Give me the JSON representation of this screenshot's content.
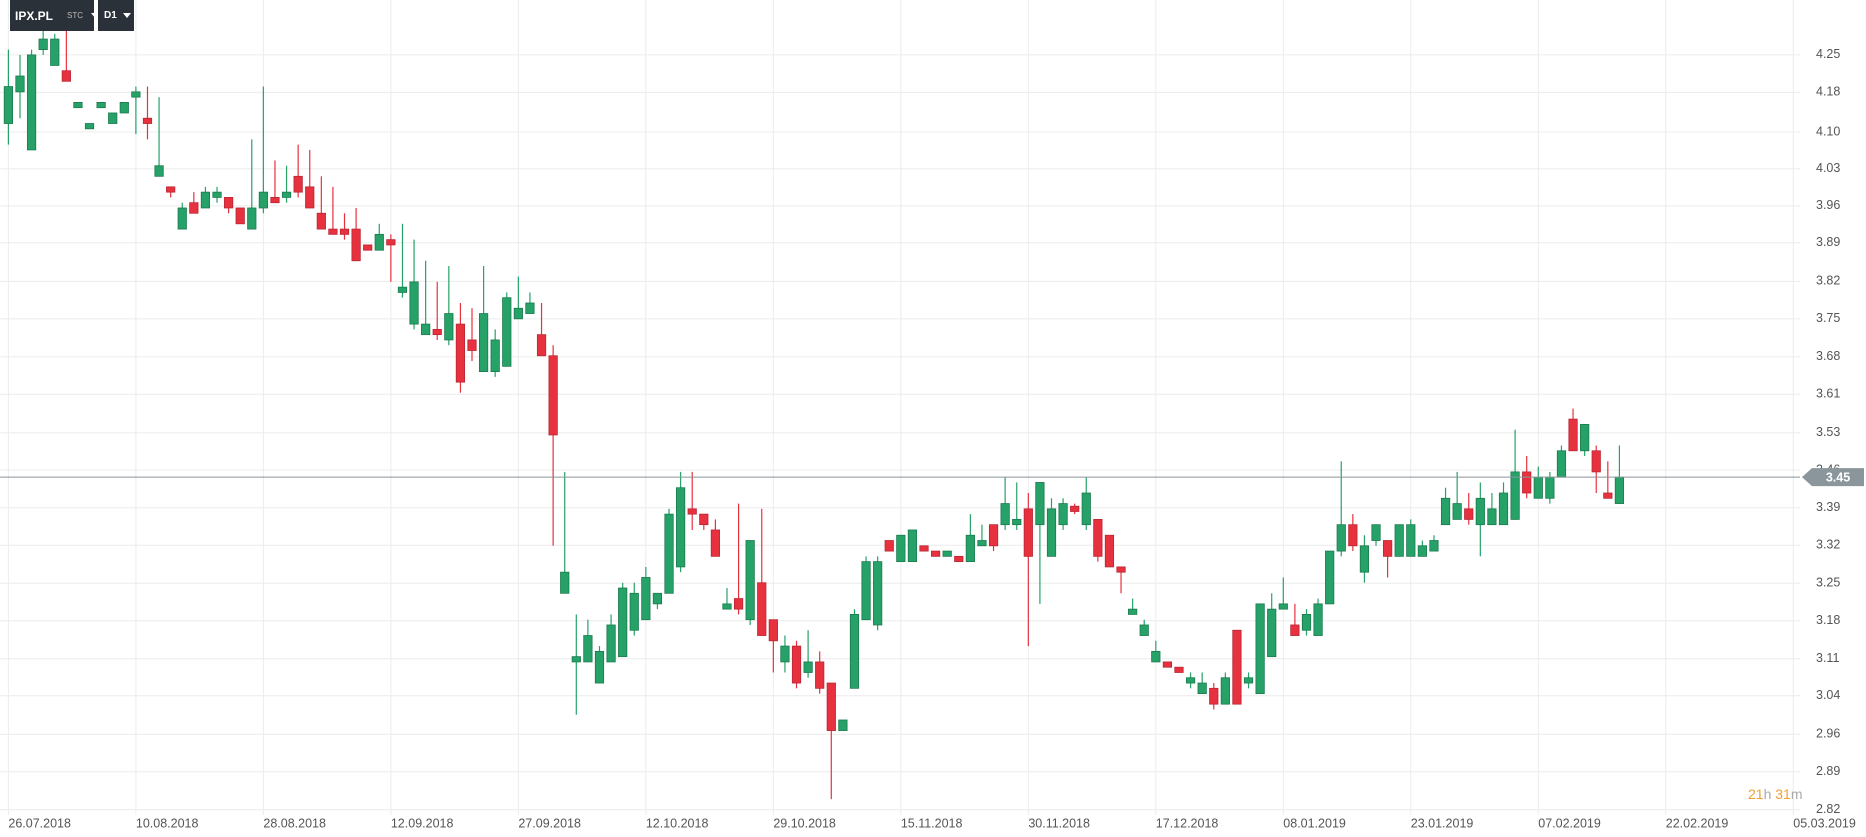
{
  "header": {
    "symbol": "IPX.PL",
    "market": "STC",
    "interval": "D1"
  },
  "countdown": {
    "hours": 21,
    "hours_unit": "h",
    "minutes": 31,
    "minutes_unit": "m"
  },
  "chart_data": {
    "type": "candlestick",
    "categories": [
      "26.07.2018",
      null,
      null,
      null,
      null,
      null,
      null,
      null,
      null,
      null,
      null,
      "10.08.2018",
      null,
      null,
      null,
      null,
      null,
      null,
      null,
      null,
      null,
      null,
      "28.08.2018",
      null,
      null,
      null,
      null,
      null,
      null,
      null,
      null,
      null,
      null,
      "12.09.2018",
      null,
      null,
      null,
      null,
      null,
      null,
      null,
      null,
      null,
      null,
      "27.09.2018",
      null,
      null,
      null,
      null,
      null,
      null,
      null,
      null,
      null,
      null,
      "12.10.2018",
      null,
      null,
      null,
      null,
      null,
      null,
      null,
      null,
      null,
      null,
      "29.10.2018",
      null,
      null,
      null,
      null,
      null,
      null,
      null,
      null,
      null,
      null,
      "15.11.2018",
      null,
      null,
      null,
      null,
      null,
      null,
      null,
      null,
      null,
      null,
      "30.11.2018",
      null,
      null,
      null,
      null,
      null,
      null,
      null,
      null,
      null,
      null,
      "17.12.2018",
      null,
      null,
      null,
      null,
      null,
      null,
      null,
      null,
      null,
      null,
      "08.01.2019",
      null,
      null,
      null,
      null,
      null,
      null,
      null,
      null,
      null,
      null,
      "23.01.2019",
      null,
      null,
      null,
      null,
      null,
      null,
      null,
      null,
      null,
      null,
      "07.02.2019",
      null,
      null,
      null,
      null,
      null,
      null,
      null,
      null,
      null,
      null,
      "22.02.2019",
      null,
      null,
      null,
      null,
      null,
      null,
      null,
      null,
      null,
      null,
      "05.03.2019"
    ],
    "open": [
      4.12,
      4.18,
      4.07,
      4.26,
      4.23,
      4.22,
      4.15,
      4.11,
      4.15,
      4.12,
      4.14,
      4.17,
      4.13,
      4.02,
      4.0,
      3.92,
      3.97,
      3.96,
      3.98,
      3.98,
      3.96,
      3.92,
      3.96,
      3.98,
      3.98,
      4.02,
      4.0,
      3.95,
      3.92,
      3.92,
      3.92,
      3.89,
      3.88,
      3.9,
      3.8,
      3.74,
      3.72,
      3.73,
      3.71,
      3.74,
      3.71,
      3.65,
      3.65,
      3.66,
      3.75,
      3.76,
      3.72,
      3.68,
      3.23,
      3.1,
      3.1,
      3.06,
      3.1,
      3.11,
      3.16,
      3.18,
      3.21,
      3.23,
      3.28,
      3.39,
      3.38,
      3.35,
      3.2,
      3.22,
      3.18,
      3.25,
      3.18,
      3.1,
      3.13,
      3.08,
      3.1,
      3.06,
      2.97,
      3.05,
      3.18,
      3.17,
      3.33,
      3.29,
      3.29,
      3.32,
      3.31,
      3.3,
      3.3,
      3.29,
      3.32,
      3.36,
      3.36,
      3.36,
      3.39,
      3.36,
      3.3,
      3.36,
      3.395,
      3.36,
      3.37,
      3.34,
      3.28,
      3.19,
      3.15,
      3.1,
      3.1,
      3.09,
      3.06,
      3.04,
      3.05,
      3.02,
      3.16,
      3.06,
      3.04,
      3.11,
      3.2,
      3.17,
      3.16,
      3.15,
      3.21,
      3.31,
      3.36,
      3.27,
      3.33,
      3.33,
      3.3,
      3.3,
      3.3,
      3.31,
      3.36,
      3.37,
      3.39,
      3.36,
      3.36,
      3.36,
      3.37,
      3.46,
      3.41,
      3.41,
      3.45,
      3.56,
      3.5,
      3.5,
      3.42,
      3.4,
      null,
      null,
      null,
      null,
      null,
      null,
      null,
      null,
      null,
      null,
      null,
      null,
      null,
      null,
      null
    ],
    "high": [
      4.26,
      4.25,
      4.26,
      4.3,
      4.29,
      4.3,
      4.16,
      4.12,
      4.16,
      4.14,
      4.16,
      4.19,
      4.19,
      4.17,
      4.0,
      3.97,
      3.99,
      4.0,
      4.0,
      3.98,
      3.96,
      4.09,
      4.19,
      4.05,
      4.04,
      4.08,
      4.07,
      4.02,
      4.0,
      3.95,
      3.96,
      3.89,
      3.93,
      3.91,
      3.93,
      3.9,
      3.86,
      3.82,
      3.85,
      3.78,
      3.77,
      3.85,
      3.73,
      3.8,
      3.83,
      3.8,
      3.78,
      3.7,
      3.46,
      3.19,
      3.18,
      3.13,
      3.19,
      3.25,
      3.25,
      3.28,
      3.23,
      3.39,
      3.46,
      3.46,
      3.38,
      3.37,
      3.24,
      3.4,
      3.33,
      3.39,
      3.18,
      3.15,
      3.14,
      3.16,
      3.12,
      3.06,
      2.99,
      3.2,
      3.3,
      3.3,
      3.33,
      3.34,
      3.35,
      3.32,
      3.31,
      3.31,
      3.3,
      3.38,
      3.36,
      3.36,
      3.45,
      3.44,
      3.42,
      3.44,
      3.41,
      3.41,
      3.4,
      3.45,
      3.37,
      3.34,
      3.28,
      3.22,
      3.18,
      3.14,
      3.1,
      3.09,
      3.08,
      3.08,
      3.06,
      3.08,
      3.16,
      3.08,
      3.21,
      3.23,
      3.26,
      3.21,
      3.2,
      3.22,
      3.31,
      3.48,
      3.38,
      3.34,
      3.36,
      3.33,
      3.36,
      3.37,
      3.33,
      3.34,
      3.43,
      3.46,
      3.42,
      3.44,
      3.42,
      3.44,
      3.54,
      3.49,
      3.47,
      3.46,
      3.51,
      3.58,
      3.55,
      3.51,
      3.48,
      3.51,
      null,
      null,
      null,
      null,
      null,
      null,
      null,
      null,
      null,
      null,
      null,
      null,
      null,
      null,
      null
    ],
    "low": [
      4.08,
      4.13,
      4.07,
      4.25,
      4.23,
      4.2,
      4.15,
      4.11,
      4.15,
      4.12,
      4.14,
      4.1,
      4.09,
      4.02,
      3.98,
      3.92,
      3.95,
      3.96,
      3.97,
      3.95,
      3.93,
      3.92,
      3.95,
      3.97,
      3.97,
      3.98,
      3.96,
      3.92,
      3.91,
      3.9,
      3.86,
      3.88,
      3.88,
      3.82,
      3.79,
      3.73,
      3.72,
      3.71,
      3.7,
      3.61,
      3.67,
      3.65,
      3.64,
      3.66,
      3.75,
      3.76,
      3.68,
      3.32,
      3.23,
      3.0,
      3.1,
      3.06,
      3.1,
      3.11,
      3.15,
      3.18,
      3.2,
      3.23,
      3.27,
      3.35,
      3.35,
      3.3,
      3.2,
      3.19,
      3.17,
      3.15,
      3.08,
      3.08,
      3.05,
      3.07,
      3.04,
      2.84,
      2.97,
      3.05,
      3.18,
      3.16,
      3.31,
      3.29,
      3.29,
      3.31,
      3.3,
      3.3,
      3.29,
      3.29,
      3.32,
      3.31,
      3.35,
      3.35,
      3.13,
      3.21,
      3.3,
      3.35,
      3.38,
      3.35,
      3.29,
      3.28,
      3.23,
      3.19,
      3.15,
      3.1,
      3.09,
      3.08,
      3.05,
      3.04,
      3.01,
      3.02,
      3.02,
      3.05,
      3.04,
      3.11,
      3.2,
      3.15,
      3.15,
      3.15,
      3.21,
      3.3,
      3.31,
      3.25,
      3.32,
      3.26,
      3.3,
      3.3,
      3.3,
      3.31,
      3.36,
      3.37,
      3.36,
      3.3,
      3.36,
      3.36,
      3.37,
      3.41,
      3.41,
      3.4,
      3.45,
      3.5,
      3.49,
      3.42,
      3.41,
      3.4,
      null,
      null,
      null,
      null,
      null,
      null,
      null,
      null,
      null,
      null,
      null,
      null,
      null,
      null,
      null
    ],
    "close": [
      4.19,
      4.21,
      4.25,
      4.28,
      4.28,
      4.2,
      4.16,
      4.12,
      4.16,
      4.14,
      4.16,
      4.18,
      4.12,
      4.04,
      3.99,
      3.96,
      3.95,
      3.99,
      3.99,
      3.96,
      3.93,
      3.96,
      3.99,
      3.97,
      3.99,
      3.99,
      3.96,
      3.92,
      3.91,
      3.91,
      3.86,
      3.88,
      3.91,
      3.89,
      3.81,
      3.82,
      3.74,
      3.72,
      3.76,
      3.63,
      3.69,
      3.76,
      3.71,
      3.79,
      3.77,
      3.78,
      3.68,
      3.53,
      3.27,
      3.11,
      3.15,
      3.12,
      3.17,
      3.24,
      3.23,
      3.26,
      3.23,
      3.38,
      3.43,
      3.38,
      3.36,
      3.3,
      3.21,
      3.2,
      3.33,
      3.15,
      3.14,
      3.13,
      3.06,
      3.1,
      3.05,
      2.97,
      2.99,
      3.19,
      3.29,
      3.29,
      3.31,
      3.34,
      3.35,
      3.31,
      3.3,
      3.31,
      3.29,
      3.34,
      3.33,
      3.32,
      3.4,
      3.37,
      3.3,
      3.44,
      3.39,
      3.4,
      3.385,
      3.42,
      3.3,
      3.28,
      3.27,
      3.2,
      3.17,
      3.12,
      3.09,
      3.08,
      3.07,
      3.06,
      3.02,
      3.07,
      3.02,
      3.07,
      3.21,
      3.2,
      3.21,
      3.15,
      3.19,
      3.21,
      3.31,
      3.36,
      3.32,
      3.32,
      3.36,
      3.3,
      3.36,
      3.36,
      3.32,
      3.33,
      3.41,
      3.4,
      3.37,
      3.41,
      3.39,
      3.42,
      3.46,
      3.42,
      3.45,
      3.45,
      3.5,
      3.5,
      3.55,
      3.46,
      3.41,
      3.45,
      null,
      null,
      null,
      null,
      null,
      null,
      null,
      null,
      null,
      null,
      null,
      null,
      null,
      null,
      null
    ],
    "up_color": "#26a269",
    "down_color": "#e8313e",
    "last_price": 3.45,
    "ylim": [
      2.81,
      4.354
    ],
    "yticks": [
      4.25,
      {
        "value": 4.179,
        "label": "4.18"
      },
      {
        "value": 4.104,
        "label": "4.10"
      },
      {
        "value": 4.034,
        "label": "4.03"
      },
      {
        "value": 3.964,
        "label": "3.96"
      },
      {
        "value": 3.894,
        "label": "3.89"
      },
      {
        "value": 3.821,
        "label": "3.82"
      },
      3.75,
      {
        "value": 3.678,
        "label": "3.68"
      },
      {
        "value": 3.607,
        "label": "3.61"
      },
      {
        "value": 3.534,
        "label": "3.53"
      },
      {
        "value": 3.4635,
        "label": "3.46"
      },
      {
        "value": 3.392,
        "label": "3.39"
      },
      {
        "value": 3.321,
        "label": "3.32"
      },
      {
        "value": 3.249,
        "label": "3.25"
      },
      {
        "value": 3.178,
        "label": "3.18"
      },
      {
        "value": 3.106,
        "label": "3.11"
      },
      {
        "value": 3.036,
        "label": "3.04"
      },
      {
        "value": 2.963,
        "label": "2.96"
      },
      {
        "value": 2.892,
        "label": "2.89"
      },
      2.82
    ],
    "grid": true
  }
}
